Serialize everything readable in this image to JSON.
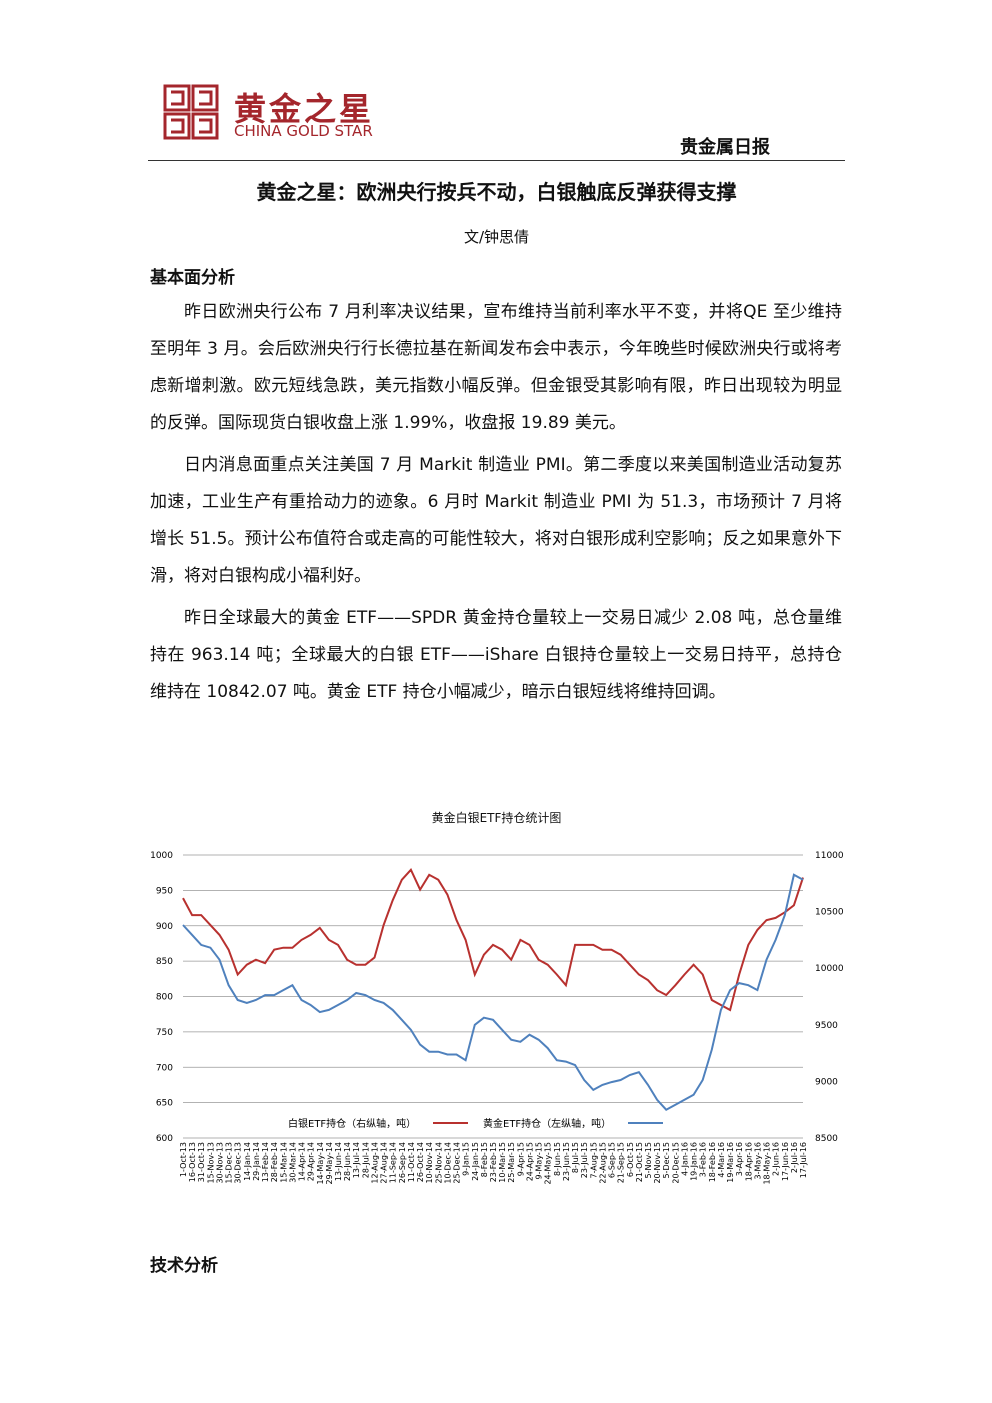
{
  "header": {
    "logo_cn": "黄金之星",
    "logo_en": "CHINA GOLD STAR",
    "report_type": "贵金属日报"
  },
  "title": "黄金之星：欧洲央行按兵不动，白银触底反弹获得支撑",
  "author": "文/钟思倩",
  "sections": [
    {
      "heading": "基本面分析",
      "paragraphs": [
        "昨日欧洲央行公布 7 月利率决议结果，宣布维持当前利率水平不变，并将QE 至少维持至明年 3 月。会后欧洲央行行长德拉基在新闻发布会中表示，今年晚些时候欧洲央行或将考虑新增刺激。欧元短线急跌，美元指数小幅反弹。但金银受其影响有限，昨日出现较为明显的反弹。国际现货白银收盘上涨 1.99%，收盘报 19.89 美元。",
        "日内消息面重点关注美国 7 月 Markit 制造业 PMI。第二季度以来美国制造业活动复苏加速，工业生产有重拾动力的迹象。6 月时 Markit 制造业 PMI 为 51.3，市场预计 7 月将增长 51.5。预计公布值符合或走高的可能性较大，将对白银形成利空影响；反之如果意外下滑，将对白银构成小福利好。",
        "昨日全球最大的黄金 ETF——SPDR 黄金持仓量较上一交易日减少 2.08 吨，总仓量维持在 963.14 吨；全球最大的白银 ETF——iShare 白银持仓量较上一交易日持平，总持仓维持在 10842.07 吨。黄金 ETF 持仓小幅减少，暗示白银短线将维持回调。"
      ]
    },
    {
      "heading": "技术分析",
      "paragraphs": []
    }
  ],
  "chart_data": {
    "type": "line",
    "title": "黄金白银ETF持仓统计图",
    "grid": true,
    "categories": [
      "1-Oct-13",
      "16-Oct-13",
      "31-Oct-13",
      "15-Nov-13",
      "30-Nov-13",
      "15-Dec-13",
      "30-Dec-13",
      "14-Jan-14",
      "29-Jan-14",
      "13-Feb-14",
      "28-Feb-14",
      "15-Mar-14",
      "30-Mar-14",
      "14-Apr-14",
      "29-Apr-14",
      "14-May-14",
      "29-May-14",
      "13-Jun-14",
      "28-Jun-14",
      "13-Jul-14",
      "28-Jul-14",
      "12-Aug-14",
      "27-Aug-14",
      "11-Sep-14",
      "26-Sep-14",
      "11-Oct-14",
      "26-Oct-14",
      "10-Nov-14",
      "25-Nov-14",
      "10-Dec-14",
      "25-Dec-14",
      "9-Jan-15",
      "24-Jan-15",
      "8-Feb-15",
      "23-Feb-15",
      "10-Mar-15",
      "25-Mar-15",
      "9-Apr-15",
      "24-Apr-15",
      "9-May-15",
      "24-May-15",
      "8-Jun-15",
      "23-Jun-15",
      "8-Jul-15",
      "23-Jul-15",
      "7-Aug-15",
      "22-Aug-15",
      "6-Sep-15",
      "21-Sep-15",
      "6-Oct-15",
      "21-Oct-15",
      "5-Nov-15",
      "20-Nov-15",
      "5-Dec-15",
      "20-Dec-15",
      "4-Jan-16",
      "19-Jan-16",
      "3-Feb-16",
      "18-Feb-16",
      "4-Mar-16",
      "19-Mar-16",
      "3-Apr-16",
      "18-Apr-16",
      "3-May-16",
      "18-May-16",
      "2-Jun-16",
      "17-Jun-16",
      "2-Jul-16",
      "17-Jul-16"
    ],
    "ylim": [
      600,
      1000
    ],
    "yticks": [
      600,
      650,
      700,
      750,
      800,
      850,
      900,
      950,
      1000
    ],
    "y2lim": [
      8500,
      11000
    ],
    "y2ticks": [
      8500,
      9000,
      9500,
      10000,
      10500,
      11000
    ],
    "series": [
      {
        "name": "白银ETF持仓（右纵轴，吨）",
        "color": "#b8312f",
        "axis": "y2",
        "values": [
          10619,
          10469,
          10469,
          10381,
          10294,
          10163,
          9944,
          10031,
          10075,
          10044,
          10163,
          10181,
          10181,
          10250,
          10294,
          10356,
          10250,
          10206,
          10075,
          10031,
          10031,
          10094,
          10381,
          10600,
          10781,
          10869,
          10694,
          10825,
          10781,
          10650,
          10425,
          10250,
          9944,
          10119,
          10206,
          10163,
          10075,
          10250,
          10206,
          10075,
          10031,
          9944,
          9850,
          10206,
          10206,
          10206,
          10163,
          10163,
          10119,
          10031,
          9944,
          9894,
          9806,
          9763,
          9850,
          9944,
          10031,
          9944,
          9719,
          9675,
          9631,
          9944,
          10206,
          10338,
          10425,
          10444,
          10494,
          10556,
          10800
        ]
      },
      {
        "name": "黄金ETF持仓（左纵轴，吨）",
        "color": "#4f81bd",
        "values": [
          901,
          887,
          873,
          869,
          852,
          816,
          795,
          791,
          795,
          802,
          802,
          809,
          816,
          795,
          788,
          778,
          781,
          788,
          795,
          805,
          802,
          795,
          791,
          781,
          767,
          753,
          732,
          722,
          722,
          718,
          718,
          710,
          760,
          770,
          767,
          753,
          739,
          736,
          746,
          739,
          727,
          710,
          708,
          703,
          682,
          668,
          675,
          679,
          682,
          689,
          693,
          675,
          654,
          640,
          647,
          654,
          661,
          682,
          725,
          781,
          809,
          819,
          816,
          809,
          852,
          880,
          915,
          972,
          965
        ]
      }
    ]
  }
}
